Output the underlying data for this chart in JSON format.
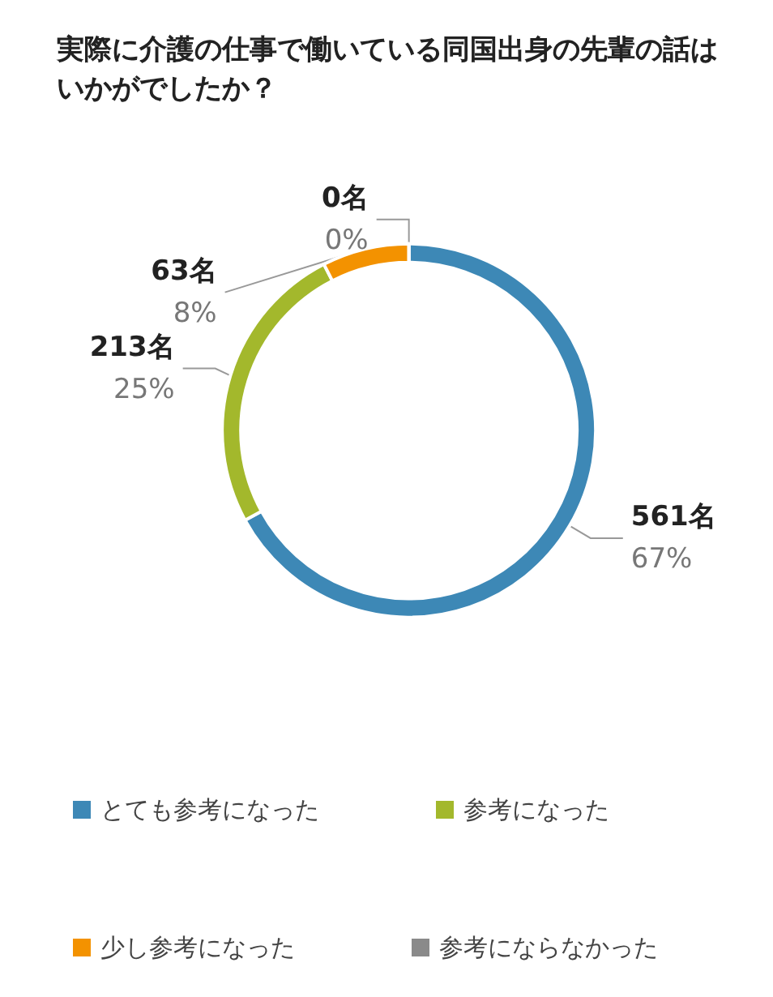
{
  "chart_data": {
    "type": "donut",
    "title": "実際に介護の仕事で働いている同国出身の先輩の話はいかがでしたか？",
    "categories": [
      "とても参考になった",
      "参考になった",
      "少し参考になった",
      "参考にならなかった"
    ],
    "values": [
      561,
      213,
      63,
      0
    ],
    "value_labels": [
      "561名\n67%",
      "213名\n25%",
      "63名\n8%",
      "0名\n0%"
    ],
    "colors": [
      "#3d88b6",
      "#a3b82c",
      "#f39200",
      "#8a8a8a"
    ],
    "legend": "bottom"
  }
}
